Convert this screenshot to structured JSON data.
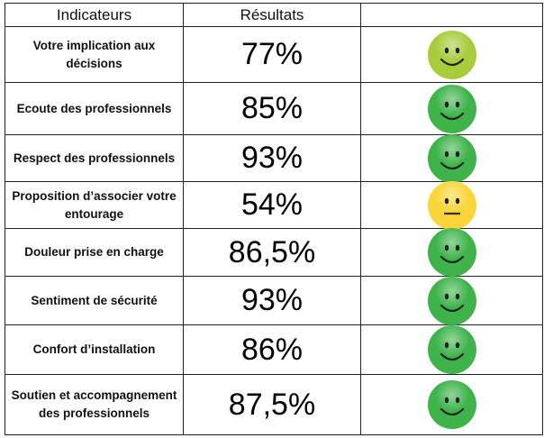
{
  "header": {
    "indicators": "Indicateurs",
    "results": "Résultats",
    "icon_col": ""
  },
  "colors": {
    "green": "#3db34a",
    "lightgreen": "#a8cc3a",
    "yellow": "#fcd53a"
  },
  "rows": [
    {
      "label": "Votre implication aux décisions",
      "value": "77%",
      "icon": "smiley-happy-light-green",
      "color": "#a8cc3a",
      "mouth": "smile"
    },
    {
      "label": "Ecoute des professionnels",
      "value": "85%",
      "icon": "smiley-happy-green",
      "color": "#3db34a",
      "mouth": "smile"
    },
    {
      "label": "Respect des professionnels",
      "value": "93%",
      "icon": "smiley-happy-green",
      "color": "#3db34a",
      "mouth": "smile"
    },
    {
      "label": "Proposition d’associer votre entourage",
      "value": "54%",
      "icon": "smiley-neutral-yellow",
      "color": "#fcd53a",
      "mouth": "flat"
    },
    {
      "label": "Douleur prise en charge",
      "value": "86,5%",
      "icon": "smiley-happy-green",
      "color": "#3db34a",
      "mouth": "smile"
    },
    {
      "label": "Sentiment de sécurité",
      "value": "93%",
      "icon": "smiley-happy-green",
      "color": "#3db34a",
      "mouth": "smile"
    },
    {
      "label": "Confort d’installation",
      "value": "86%",
      "icon": "smiley-happy-green",
      "color": "#3db34a",
      "mouth": "smile"
    },
    {
      "label": "Soutien et accompagnement des professionnels",
      "value": "87,5%",
      "icon": "smiley-happy-green",
      "color": "#3db34a",
      "mouth": "smile"
    }
  ]
}
